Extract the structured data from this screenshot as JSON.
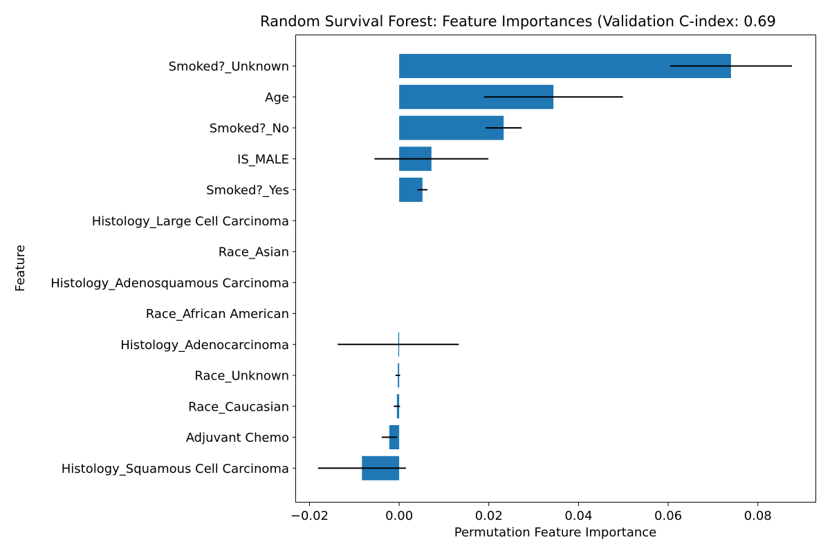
{
  "chart_data": {
    "type": "bar",
    "orientation": "horizontal",
    "title": "Random Survival Forest: Feature Importances (Validation C-index: 0.69",
    "xlabel": "Permutation Feature Importance",
    "ylabel": "Feature",
    "xlim": [
      -0.023,
      0.093
    ],
    "xticks": [
      -0.02,
      0.0,
      0.02,
      0.04,
      0.06,
      0.08
    ],
    "xtick_labels": [
      "−0.02",
      "0.00",
      "0.02",
      "0.04",
      "0.06",
      "0.08"
    ],
    "bar_color": "#1f77b4",
    "error_color": "#000000",
    "grid": false,
    "categories": [
      "Smoked?_Unknown",
      "Age",
      "Smoked?_No",
      "IS_MALE",
      "Smoked?_Yes",
      "Histology_Large Cell Carcinoma",
      "Race_Asian",
      "Histology_Adenosquamous Carcinoma",
      "Race_African American",
      "Histology_Adenocarcinoma",
      "Race_Unknown",
      "Race_Caucasian",
      "Adjuvant Chemo",
      "Histology_Squamous Cell Carcinoma"
    ],
    "values": [
      0.074,
      0.0344,
      0.0233,
      0.0072,
      0.0052,
      0.0,
      0.0,
      0.0,
      0.0,
      -0.0002,
      -0.0003,
      -0.0005,
      -0.0022,
      -0.0083
    ],
    "errors": [
      0.0136,
      0.0155,
      0.004,
      0.0127,
      0.0011,
      0.0,
      0.0,
      0.0,
      0.0,
      0.0135,
      0.0005,
      0.0007,
      0.0017,
      0.0098
    ]
  }
}
